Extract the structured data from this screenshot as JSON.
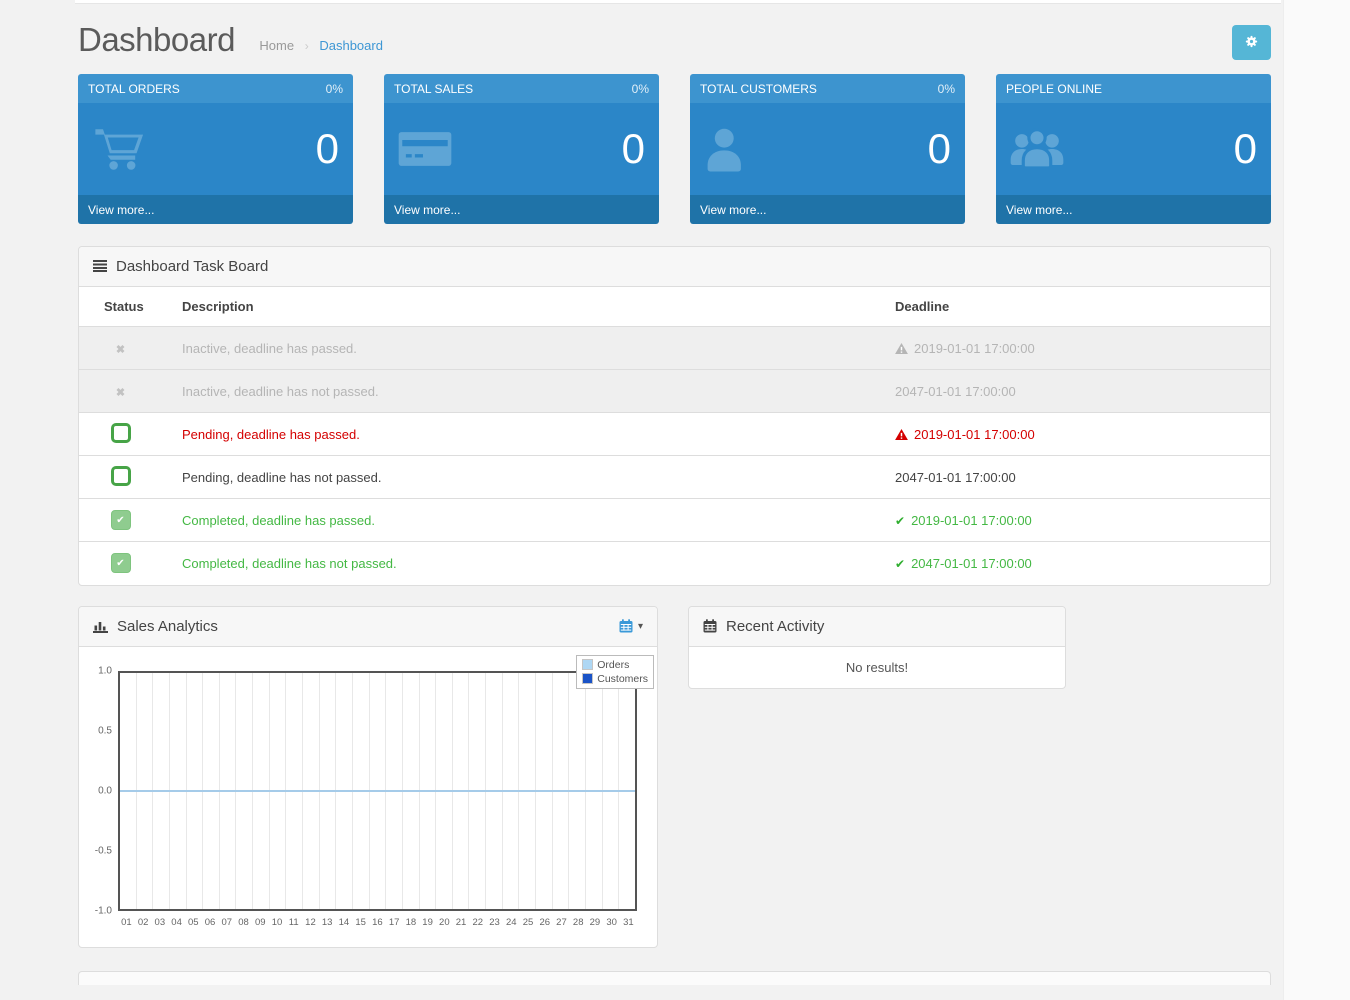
{
  "header": {
    "title": "Dashboard",
    "breadcrumb": [
      "Home",
      "Dashboard"
    ],
    "separator": "›",
    "settings_icon": "gear-icon"
  },
  "tiles": [
    {
      "label": "TOTAL ORDERS",
      "percent": "0%",
      "value": "0",
      "icon": "cart-icon",
      "link": "View more..."
    },
    {
      "label": "TOTAL SALES",
      "percent": "0%",
      "value": "0",
      "icon": "credit-card-icon",
      "link": "View more..."
    },
    {
      "label": "TOTAL CUSTOMERS",
      "percent": "0%",
      "value": "0",
      "icon": "user-icon",
      "link": "View more..."
    },
    {
      "label": "PEOPLE ONLINE",
      "percent": "",
      "value": "0",
      "icon": "users-icon",
      "link": "View more..."
    }
  ],
  "task_board": {
    "title": "Dashboard Task Board",
    "title_icon": "list-icon",
    "columns": [
      "Status",
      "Description",
      "Deadline"
    ],
    "rows": [
      {
        "status": "inactive",
        "description": "Inactive, deadline has passed.",
        "deadline": "2019-01-01 17:00:00",
        "deadline_icon": "warning",
        "state": "muted"
      },
      {
        "status": "inactive",
        "description": "Inactive, deadline has not passed.",
        "deadline": "2047-01-01 17:00:00",
        "deadline_icon": "none",
        "state": "muted"
      },
      {
        "status": "pending",
        "description": "Pending, deadline has passed.",
        "deadline": "2019-01-01 17:00:00",
        "deadline_icon": "warning",
        "state": "danger"
      },
      {
        "status": "pending",
        "description": "Pending, deadline has not passed.",
        "deadline": "2047-01-01 17:00:00",
        "deadline_icon": "none",
        "state": "normal"
      },
      {
        "status": "completed",
        "description": "Completed, deadline has passed.",
        "deadline": "2019-01-01 17:00:00",
        "deadline_icon": "check",
        "state": "success"
      },
      {
        "status": "completed",
        "description": "Completed, deadline has not passed.",
        "deadline": "2047-01-01 17:00:00",
        "deadline_icon": "check",
        "state": "success"
      }
    ]
  },
  "sales_analytics": {
    "title": "Sales Analytics",
    "title_icon": "bar-chart-icon",
    "range_icon": "calendar-icon"
  },
  "recent_activity": {
    "title": "Recent Activity",
    "title_icon": "calendar-icon",
    "empty_message": "No results!"
  },
  "chart_data": {
    "type": "line",
    "title": "Sales Analytics",
    "x": [
      "01",
      "02",
      "03",
      "04",
      "05",
      "06",
      "07",
      "08",
      "09",
      "10",
      "11",
      "12",
      "13",
      "14",
      "15",
      "16",
      "17",
      "18",
      "19",
      "20",
      "21",
      "22",
      "23",
      "24",
      "25",
      "26",
      "27",
      "28",
      "29",
      "30",
      "31"
    ],
    "series": [
      {
        "name": "Orders",
        "color": "#aed7f4",
        "values": [
          0,
          0,
          0,
          0,
          0,
          0,
          0,
          0,
          0,
          0,
          0,
          0,
          0,
          0,
          0,
          0,
          0,
          0,
          0,
          0,
          0,
          0,
          0,
          0,
          0,
          0,
          0,
          0,
          0,
          0,
          0
        ]
      },
      {
        "name": "Customers",
        "color": "#1a53c7",
        "values": []
      }
    ],
    "xlabel": "",
    "ylabel": "",
    "ylim": [
      -1.0,
      1.0
    ],
    "yticks": [
      1.0,
      0.5,
      0.0,
      -0.5,
      -1.0
    ],
    "grid": "vertical",
    "legend_position": "top-right"
  },
  "icons": {
    "inactive_glyph": "✖",
    "check_glyph": "✔",
    "caret_glyph": "▾"
  },
  "colors": {
    "tile_header": "#3d94cf",
    "tile_body": "#2b86c8",
    "tile_footer": "#1f73a8",
    "settings_button": "#55b6d6",
    "link_blue": "#3e97d4",
    "danger_red": "#d40000",
    "success_green": "#44b844",
    "muted_gray": "#b5b5b5",
    "orders_series": "#aed7f4",
    "customers_series": "#1a53c7"
  }
}
